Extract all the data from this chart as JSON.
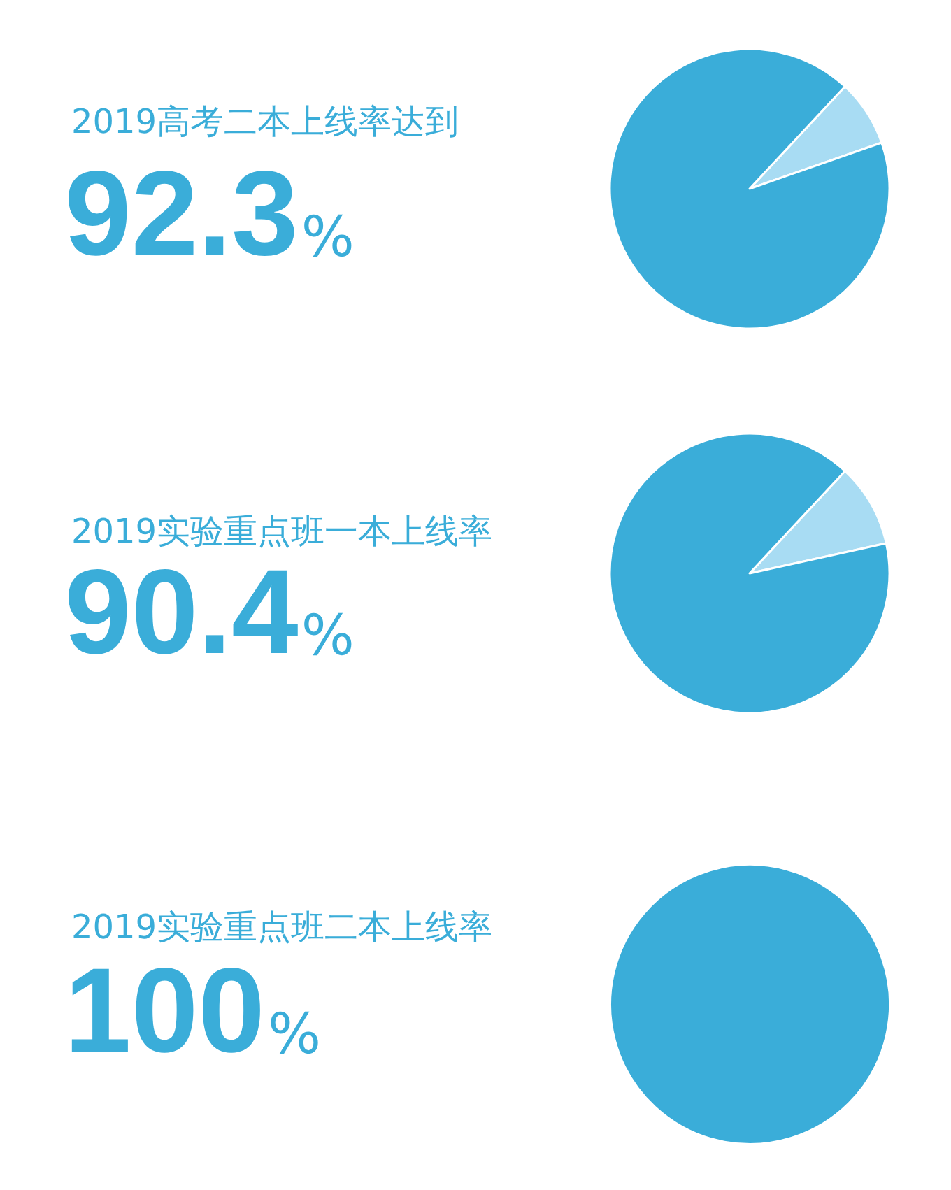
{
  "chart_data": [
    {
      "type": "pie",
      "title": "2019高考二本上线率达到",
      "categories": [
        null,
        null
      ],
      "values": [
        7.7,
        92.3
      ],
      "colors": [
        "#a8dcf3",
        "#3aadd9"
      ],
      "value_labels": [
        null,
        "92.3%"
      ]
    },
    {
      "type": "pie",
      "title": "2019实验重点班一本上线率",
      "categories": [
        null,
        null
      ],
      "values": [
        9.6,
        90.4
      ],
      "colors": [
        "#a8dcf3",
        "#3aadd9"
      ],
      "value_labels": [
        null,
        "90.4%"
      ]
    },
    {
      "type": "pie",
      "title": "2019实验重点班二本上线率",
      "categories": [
        null
      ],
      "values": [
        100
      ],
      "colors": [
        "#3aadd9"
      ],
      "value_labels": [
        "100%"
      ]
    }
  ]
}
